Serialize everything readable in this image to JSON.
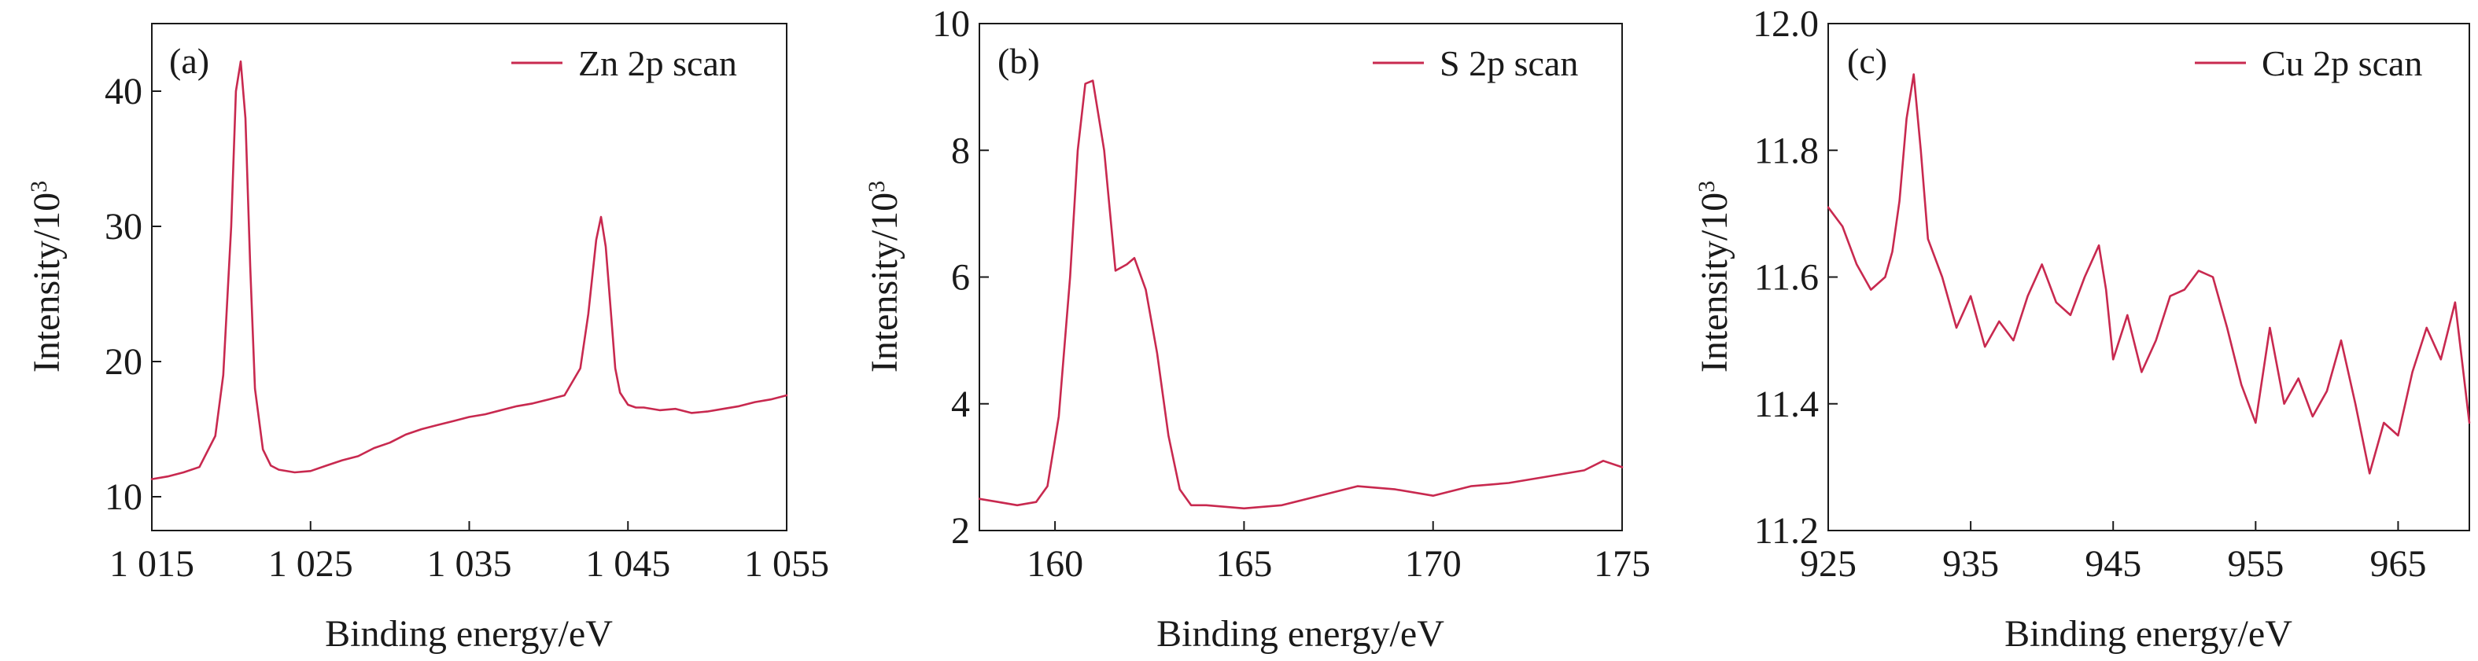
{
  "colors": {
    "series": "#c8294f",
    "axis": "#1a1a1a"
  },
  "chart_data": [
    {
      "type": "line",
      "panel_label": "(a)",
      "xlabel": "Binding energy/eV",
      "ylabel_base": "Intensity/10",
      "ylabel_exp": "3",
      "xlim": [
        1015,
        1055
      ],
      "ylim": [
        7.5,
        45
      ],
      "xticks": [
        1015,
        1025,
        1035,
        1045,
        1055
      ],
      "xtick_labels": [
        "1 015",
        "1 025",
        "1 035",
        "1 045",
        "1 055"
      ],
      "yticks": [
        10,
        20,
        30,
        40
      ],
      "ytick_labels": [
        "10",
        "20",
        "30",
        "40"
      ],
      "legend": "Zn 2p scan",
      "legend_position": "top-right",
      "series": [
        {
          "name": "Zn 2p scan",
          "x": [
            1015,
            1016,
            1017,
            1018,
            1019,
            1019.5,
            1020,
            1020.3,
            1020.6,
            1020.9,
            1021.2,
            1021.5,
            1022,
            1022.5,
            1023,
            1024,
            1025,
            1026,
            1027,
            1028,
            1029,
            1030,
            1031,
            1032,
            1033,
            1034,
            1035,
            1036,
            1037,
            1038,
            1039,
            1040,
            1041,
            1042,
            1042.5,
            1043,
            1043.3,
            1043.6,
            1043.9,
            1044.2,
            1044.5,
            1045,
            1045.5,
            1046,
            1047,
            1048,
            1049,
            1050,
            1051,
            1052,
            1053,
            1054,
            1055
          ],
          "values": [
            11.3,
            11.5,
            11.8,
            12.2,
            14.5,
            19.0,
            30.0,
            40.0,
            42.2,
            38.0,
            27.0,
            18.0,
            13.5,
            12.3,
            12.0,
            11.8,
            11.9,
            12.3,
            12.7,
            13.0,
            13.6,
            14.0,
            14.6,
            15.0,
            15.3,
            15.6,
            15.9,
            16.1,
            16.4,
            16.7,
            16.9,
            17.2,
            17.5,
            19.5,
            23.5,
            29.0,
            30.7,
            28.5,
            24.0,
            19.5,
            17.7,
            16.8,
            16.6,
            16.6,
            16.4,
            16.5,
            16.2,
            16.3,
            16.5,
            16.7,
            17.0,
            17.2,
            17.5
          ]
        }
      ]
    },
    {
      "type": "line",
      "panel_label": "(b)",
      "xlabel": "Binding energy/eV",
      "ylabel_base": "Intensity/10",
      "ylabel_exp": "3",
      "xlim": [
        158,
        175
      ],
      "ylim": [
        2,
        10
      ],
      "xticks": [
        160,
        165,
        170,
        175
      ],
      "xtick_labels": [
        "160",
        "165",
        "170",
        "175"
      ],
      "yticks": [
        2,
        4,
        6,
        8,
        10
      ],
      "ytick_labels": [
        "2",
        "4",
        "6",
        "8",
        "10"
      ],
      "legend": "S 2p scan",
      "legend_position": "top-right",
      "series": [
        {
          "name": "S 2p scan",
          "x": [
            158,
            158.5,
            159,
            159.5,
            159.8,
            160.1,
            160.4,
            160.6,
            160.8,
            161,
            161.3,
            161.6,
            161.9,
            162.1,
            162.4,
            162.7,
            163,
            163.3,
            163.6,
            164,
            165,
            166,
            167,
            168,
            169,
            170,
            171,
            172,
            173,
            174,
            174.5,
            175
          ],
          "values": [
            2.5,
            2.45,
            2.4,
            2.45,
            2.7,
            3.8,
            6.0,
            8.0,
            9.05,
            9.1,
            8.0,
            6.1,
            6.2,
            6.3,
            5.8,
            4.8,
            3.5,
            2.65,
            2.4,
            2.4,
            2.35,
            2.4,
            2.55,
            2.7,
            2.65,
            2.55,
            2.7,
            2.75,
            2.85,
            2.95,
            3.1,
            3.0
          ]
        }
      ]
    },
    {
      "type": "line",
      "panel_label": "(c)",
      "xlabel": "Binding energy/eV",
      "ylabel_base": "Intensity/10",
      "ylabel_exp": "3",
      "xlim": [
        925,
        970
      ],
      "ylim": [
        11.2,
        12.0
      ],
      "xticks": [
        925,
        935,
        945,
        955,
        965
      ],
      "xtick_labels": [
        "925",
        "935",
        "945",
        "955",
        "965"
      ],
      "yticks": [
        11.2,
        11.4,
        11.6,
        11.8,
        12.0
      ],
      "ytick_labels": [
        "11.2",
        "11.4",
        "11.6",
        "11.8",
        "12.0"
      ],
      "legend": "Cu 2p scan",
      "legend_position": "top-right",
      "series": [
        {
          "name": "Cu 2p scan",
          "x": [
            925,
            926,
            927,
            928,
            929,
            929.5,
            930,
            930.5,
            931,
            931.5,
            932,
            933,
            934,
            935,
            936,
            937,
            938,
            939,
            940,
            941,
            942,
            943,
            944,
            944.5,
            945,
            946,
            947,
            948,
            949,
            950,
            951,
            952,
            953,
            954,
            955,
            956,
            957,
            958,
            959,
            960,
            961,
            962,
            963,
            964,
            965,
            966,
            967,
            968,
            969,
            970
          ],
          "values": [
            11.71,
            11.68,
            11.62,
            11.58,
            11.6,
            11.64,
            11.72,
            11.85,
            11.92,
            11.8,
            11.66,
            11.6,
            11.52,
            11.57,
            11.49,
            11.53,
            11.5,
            11.57,
            11.62,
            11.56,
            11.54,
            11.6,
            11.65,
            11.58,
            11.47,
            11.54,
            11.45,
            11.5,
            11.57,
            11.58,
            11.61,
            11.6,
            11.52,
            11.43,
            11.37,
            11.52,
            11.4,
            11.44,
            11.38,
            11.42,
            11.5,
            11.4,
            11.29,
            11.37,
            11.35,
            11.45,
            11.52,
            11.47,
            11.56,
            11.37
          ]
        }
      ]
    }
  ]
}
